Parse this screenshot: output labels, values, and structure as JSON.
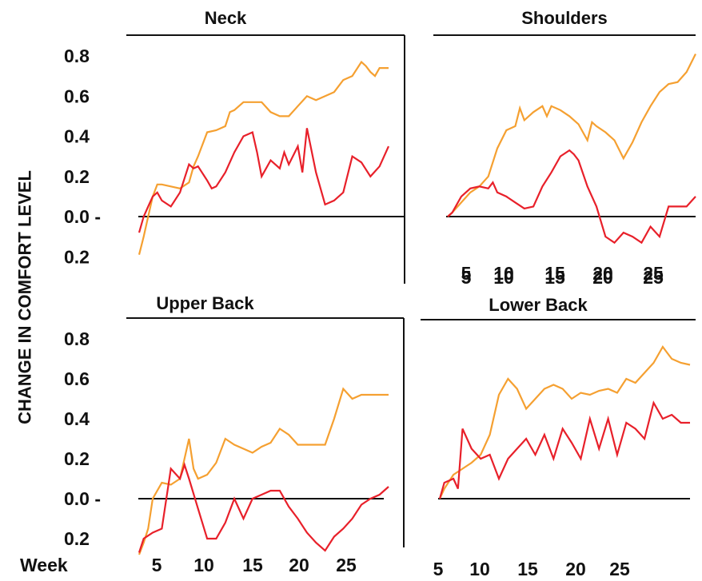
{
  "figure": {
    "ylabel": "CHANGE IN COMFORT LEVEL",
    "xlabel": "Week",
    "yticks": [
      "0.8",
      "0.6",
      "0.4",
      "0.2",
      "0.0 -",
      "0.2"
    ],
    "xticks": [
      "5",
      "10",
      "15",
      "20",
      "25"
    ],
    "colors": {
      "orange": "#f5a031",
      "red": "#e8202a",
      "axis": "#111111"
    }
  },
  "chart_data": [
    {
      "type": "line",
      "title": "Neck",
      "ylim": [
        -0.2,
        0.8
      ],
      "xlim": [
        1.5,
        29
      ],
      "series": [
        {
          "color": "#f5a031",
          "x": [
            1.5,
            2,
            2.5,
            3,
            3.5,
            4,
            5,
            6,
            7,
            7.5,
            8,
            9,
            10,
            11,
            11.5,
            12,
            13,
            14,
            15,
            16,
            17,
            18,
            19,
            20,
            21,
            22,
            23,
            24,
            25,
            26,
            26.5,
            27,
            27.5,
            28,
            29
          ],
          "y": [
            -0.19,
            -0.1,
            0.0,
            0.1,
            0.16,
            0.16,
            0.15,
            0.14,
            0.17,
            0.25,
            0.3,
            0.42,
            0.43,
            0.45,
            0.52,
            0.53,
            0.57,
            0.57,
            0.57,
            0.52,
            0.5,
            0.5,
            0.55,
            0.6,
            0.58,
            0.6,
            0.62,
            0.68,
            0.7,
            0.77,
            0.75,
            0.72,
            0.7,
            0.74,
            0.74
          ]
        },
        {
          "color": "#e8202a",
          "x": [
            1.5,
            2,
            2.5,
            3,
            3.5,
            4,
            5,
            6,
            7,
            7.5,
            8,
            9,
            9.5,
            10,
            11,
            12,
            13,
            14,
            14.5,
            15,
            16,
            17,
            17.5,
            18,
            19,
            19.5,
            20,
            21,
            22,
            23,
            24,
            25,
            26,
            27,
            28,
            29
          ],
          "y": [
            -0.08,
            0.0,
            0.05,
            0.1,
            0.12,
            0.08,
            0.05,
            0.12,
            0.26,
            0.24,
            0.25,
            0.18,
            0.14,
            0.15,
            0.22,
            0.32,
            0.4,
            0.42,
            0.32,
            0.2,
            0.28,
            0.24,
            0.32,
            0.26,
            0.35,
            0.22,
            0.44,
            0.22,
            0.06,
            0.08,
            0.12,
            0.3,
            0.27,
            0.2,
            0.25,
            0.35
          ]
        }
      ]
    },
    {
      "type": "line",
      "title": "Shoulders",
      "ylim": [
        -0.2,
        0.8
      ],
      "xlim": [
        1.5,
        29
      ],
      "series": [
        {
          "color": "#f5a031",
          "x": [
            1.5,
            2,
            3,
            4,
            5,
            6,
            7,
            8,
            9,
            9.5,
            10,
            11,
            12,
            12.5,
            13,
            14,
            15,
            16,
            17,
            17.5,
            18,
            19,
            20,
            21,
            22,
            23,
            24,
            25,
            26,
            27,
            28,
            29
          ],
          "y": [
            0.0,
            0.02,
            0.07,
            0.12,
            0.15,
            0.2,
            0.34,
            0.43,
            0.45,
            0.54,
            0.48,
            0.52,
            0.55,
            0.5,
            0.55,
            0.53,
            0.5,
            0.46,
            0.38,
            0.47,
            0.45,
            0.42,
            0.38,
            0.29,
            0.37,
            0.47,
            0.55,
            0.62,
            0.66,
            0.67,
            0.72,
            0.81
          ]
        },
        {
          "color": "#e8202a",
          "x": [
            1.5,
            2,
            3,
            4,
            5,
            6,
            6.5,
            7,
            8,
            9,
            10,
            11,
            12,
            13,
            14,
            15,
            15.5,
            16,
            17,
            18,
            19,
            20,
            21,
            22,
            23,
            24,
            25,
            26,
            27,
            28,
            29
          ],
          "y": [
            0.0,
            0.02,
            0.1,
            0.14,
            0.15,
            0.14,
            0.17,
            0.12,
            0.1,
            0.07,
            0.04,
            0.05,
            0.15,
            0.22,
            0.3,
            0.33,
            0.31,
            0.28,
            0.15,
            0.05,
            -0.1,
            -0.13,
            -0.08,
            -0.1,
            -0.13,
            -0.05,
            -0.1,
            0.05,
            0.05,
            0.05,
            0.1
          ]
        }
      ]
    },
    {
      "type": "line",
      "title": "Upper Back",
      "ylim": [
        -0.2,
        0.8
      ],
      "xlim": [
        1.5,
        29
      ],
      "series": [
        {
          "color": "#f5a031",
          "x": [
            1.5,
            2,
            2.5,
            3,
            4,
            5,
            6,
            7,
            7.5,
            8,
            9,
            10,
            11,
            12,
            13,
            14,
            15,
            16,
            17,
            18,
            19,
            20,
            21,
            22,
            23,
            24,
            25,
            26,
            27,
            28,
            29
          ],
          "y": [
            -0.28,
            -0.22,
            -0.15,
            0.0,
            0.08,
            0.07,
            0.1,
            0.3,
            0.15,
            0.1,
            0.12,
            0.18,
            0.3,
            0.27,
            0.25,
            0.23,
            0.26,
            0.28,
            0.35,
            0.32,
            0.27,
            0.27,
            0.27,
            0.27,
            0.4,
            0.55,
            0.5,
            0.52,
            0.52,
            0.52,
            0.52
          ]
        },
        {
          "color": "#e8202a",
          "x": [
            1.5,
            2,
            3,
            4,
            5,
            6,
            6.5,
            7,
            8,
            9,
            10,
            11,
            12,
            13,
            14,
            15,
            16,
            17,
            18,
            19,
            20,
            21,
            22,
            23,
            24,
            25,
            26,
            27,
            28,
            29
          ],
          "y": [
            -0.27,
            -0.2,
            -0.17,
            -0.15,
            0.15,
            0.1,
            0.17,
            0.1,
            -0.05,
            -0.2,
            -0.2,
            -0.12,
            0.0,
            -0.1,
            0.0,
            0.02,
            0.04,
            0.04,
            -0.04,
            -0.1,
            -0.17,
            -0.22,
            -0.26,
            -0.19,
            -0.15,
            -0.1,
            -0.03,
            0.0,
            0.02,
            0.06
          ]
        }
      ]
    },
    {
      "type": "line",
      "title": "Lower Back",
      "ylim": [
        -0.2,
        0.8
      ],
      "xlim": [
        1.5,
        29
      ],
      "series": [
        {
          "color": "#f5a031",
          "x": [
            1.5,
            2,
            3,
            4,
            5,
            6,
            7,
            8,
            9,
            10,
            11,
            12,
            13,
            14,
            15,
            16,
            17,
            18,
            19,
            20,
            21,
            22,
            23,
            24,
            25,
            26,
            26.5,
            27,
            28,
            29
          ],
          "y": [
            0.0,
            0.05,
            0.12,
            0.15,
            0.18,
            0.22,
            0.32,
            0.52,
            0.6,
            0.55,
            0.45,
            0.5,
            0.55,
            0.57,
            0.55,
            0.5,
            0.53,
            0.52,
            0.54,
            0.55,
            0.53,
            0.6,
            0.58,
            0.63,
            0.68,
            0.76,
            0.73,
            0.7,
            0.68,
            0.67
          ]
        },
        {
          "color": "#e8202a",
          "x": [
            1.5,
            2,
            3,
            3.5,
            4,
            5,
            6,
            7,
            8,
            9,
            10,
            11,
            12,
            13,
            14,
            15,
            16,
            17,
            18,
            19,
            20,
            21,
            22,
            23,
            24,
            25,
            26,
            27,
            28,
            29
          ],
          "y": [
            0.0,
            0.08,
            0.1,
            0.05,
            0.35,
            0.25,
            0.2,
            0.22,
            0.1,
            0.2,
            0.25,
            0.3,
            0.22,
            0.32,
            0.2,
            0.35,
            0.28,
            0.2,
            0.4,
            0.25,
            0.4,
            0.22,
            0.38,
            0.35,
            0.3,
            0.48,
            0.4,
            0.42,
            0.38,
            0.38
          ]
        }
      ]
    }
  ]
}
